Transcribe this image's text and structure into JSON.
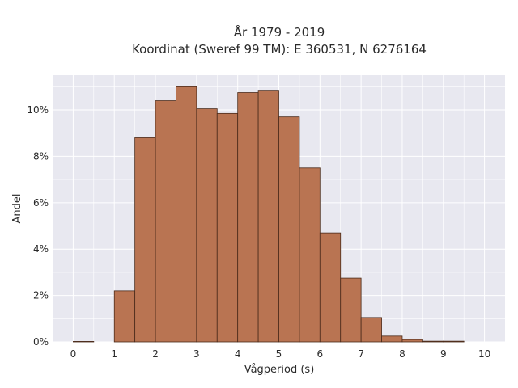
{
  "chart_data": {
    "type": "bar",
    "title_line1": "År 1979 - 2019",
    "title_line2": "Koordinat (Sweref 99 TM): E 360531, N 6276164",
    "xlabel": "Vågperiod (s)",
    "ylabel": "Andel",
    "bin_width": 0.5,
    "bin_starts": [
      0,
      0.5,
      1,
      1.5,
      2,
      2.5,
      3,
      3.5,
      4,
      4.5,
      5,
      5.5,
      6,
      6.5,
      7,
      7.5,
      8,
      8.5,
      9,
      9.5
    ],
    "values": [
      0.02,
      0,
      2.2,
      8.8,
      10.4,
      11.0,
      10.05,
      9.85,
      10.75,
      10.85,
      9.7,
      7.5,
      4.7,
      2.75,
      1.05,
      0.25,
      0.1,
      0.03,
      0.03,
      0
    ],
    "value_unit": "%",
    "xlim": [
      -0.5,
      10.5
    ],
    "ylim": [
      0,
      11.5
    ],
    "x_ticks": [
      "0",
      "1",
      "2",
      "3",
      "4",
      "5",
      "6",
      "7",
      "8",
      "9",
      "10"
    ],
    "y_ticks": [
      "0%",
      "2%",
      "4%",
      "6%",
      "8%",
      "10%"
    ],
    "grid": true,
    "colors": {
      "bar_fill": "#b97452",
      "bar_edge": "#4a2a1a",
      "plot_background": "#e8e8f0",
      "grid": "#ffffff"
    }
  }
}
